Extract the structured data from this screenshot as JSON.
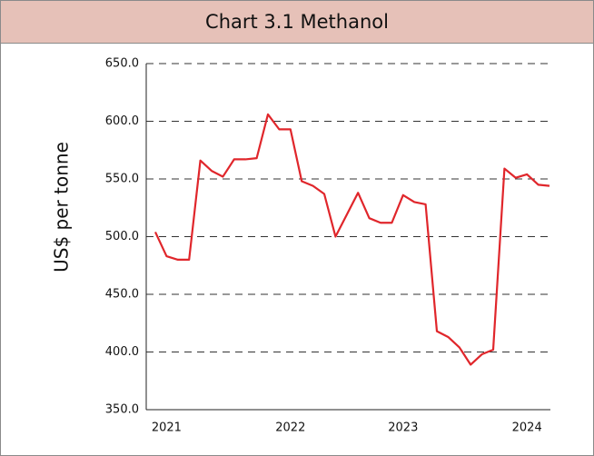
{
  "chart_data": {
    "type": "line",
    "title": "Chart 3.1 Methanol",
    "y_label": "US$ per tonne",
    "categories": [
      null,
      "2021",
      null,
      null,
      null,
      null,
      null,
      null,
      null,
      null,
      null,
      null,
      "2022",
      null,
      null,
      null,
      null,
      null,
      null,
      null,
      null,
      null,
      "2023",
      null,
      null,
      null,
      null,
      null,
      null,
      null,
      null,
      null,
      null,
      "2024",
      null,
      null
    ],
    "series": [
      {
        "name": "Methanol",
        "color": "#e0262b",
        "values": [
          504,
          483,
          480,
          480,
          566,
          557,
          552,
          567,
          567,
          568,
          606,
          593,
          593,
          548,
          544,
          537,
          500,
          519,
          538,
          516,
          512,
          512,
          536,
          530,
          528,
          418,
          413,
          404,
          389,
          398,
          402,
          559,
          551,
          554,
          545,
          544
        ]
      }
    ],
    "ylim": [
      350,
      650
    ],
    "yticks": [
      {
        "value": 350,
        "label": "350.0"
      },
      {
        "value": 400,
        "label": "400.0"
      },
      {
        "value": 450,
        "label": "450.0"
      },
      {
        "value": 500,
        "label": "500.0"
      },
      {
        "value": 550,
        "label": "550.0"
      },
      {
        "value": 600,
        "label": "600.0"
      },
      {
        "value": 650,
        "label": "650.0"
      }
    ],
    "grid": true
  }
}
